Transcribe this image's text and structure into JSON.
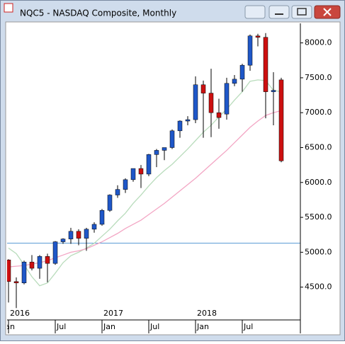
{
  "window_title": "NQC5 - NASDAQ Composite, Monthly",
  "chart_data": {
    "type": "candlestick",
    "categories": [
      "Jan",
      null,
      null,
      null,
      null,
      null,
      "Jul",
      null,
      null,
      null,
      null,
      null,
      "Jan",
      null,
      null,
      null,
      null,
      null,
      "Jul",
      null,
      null,
      null,
      null,
      null,
      "Jan",
      null,
      null,
      null,
      null,
      null,
      "Jul",
      null,
      null,
      null,
      null,
      null
    ],
    "years": [
      "2016",
      null,
      null,
      null,
      null,
      null,
      null,
      null,
      null,
      null,
      null,
      null,
      "2017",
      null,
      null,
      null,
      null,
      null,
      null,
      null,
      null,
      null,
      null,
      null,
      "2018",
      null,
      null,
      null,
      null,
      null,
      null,
      null,
      null,
      null,
      null,
      null
    ],
    "open": [
      4890,
      4580,
      4560,
      4860,
      4770,
      4940,
      4840,
      5150,
      5190,
      5300,
      5200,
      5330,
      5400,
      5600,
      5820,
      5900,
      6040,
      6200,
      6120,
      6400,
      6460,
      6500,
      6740,
      6880,
      6900,
      7400,
      7280,
      7000,
      6980,
      7420,
      7480,
      7680,
      8100,
      8080,
      7300,
      7470
    ],
    "high": [
      4900,
      4640,
      4880,
      4960,
      4960,
      4980,
      5160,
      5200,
      5350,
      5330,
      5350,
      5430,
      5620,
      5830,
      5960,
      6060,
      6200,
      6250,
      6410,
      6480,
      6500,
      6760,
      6890,
      6950,
      7520,
      7460,
      7630,
      7200,
      7500,
      7540,
      7700,
      8120,
      8130,
      8140,
      7580,
      7500
    ],
    "low": [
      4280,
      4200,
      4540,
      4740,
      4620,
      4570,
      4820,
      5120,
      5120,
      5100,
      5020,
      5280,
      5380,
      5580,
      5780,
      5850,
      6010,
      5920,
      6090,
      6220,
      6320,
      6480,
      6640,
      6820,
      6850,
      6640,
      6650,
      6770,
      6900,
      7380,
      7300,
      7600,
      7950,
      6920,
      6820,
      6290
    ],
    "close": [
      4580,
      4560,
      4860,
      4770,
      4940,
      4840,
      5150,
      5190,
      5300,
      5200,
      5330,
      5400,
      5600,
      5820,
      5900,
      6040,
      6200,
      6120,
      6400,
      6460,
      6500,
      6740,
      6880,
      6900,
      7400,
      7280,
      7000,
      6930,
      7420,
      7480,
      7680,
      8100,
      8080,
      7300,
      7320,
      6310
    ],
    "up_color": "#1f57c8",
    "down_color": "#cc1010",
    "series": [
      {
        "color": "#b9dcbc",
        "values": [
          5060,
          4980,
          4820,
          4650,
          4520,
          4560,
          4700,
          4850,
          4950,
          5000,
          5060,
          5130,
          5230,
          5330,
          5450,
          5560,
          5700,
          5820,
          5950,
          6070,
          6170,
          6260,
          6370,
          6480,
          6600,
          6720,
          6820,
          6940,
          7050,
          7180,
          7300,
          7450,
          7470,
          7460,
          7320,
          7300
        ]
      },
      {
        "color": "#f3a6c4",
        "values": [
          4790,
          4800,
          4810,
          4830,
          4850,
          4880,
          4920,
          4960,
          5000,
          5020,
          5050,
          5100,
          5150,
          5210,
          5270,
          5340,
          5400,
          5460,
          5540,
          5620,
          5700,
          5790,
          5880,
          5970,
          6060,
          6160,
          6260,
          6360,
          6460,
          6570,
          6680,
          6790,
          6880,
          6960,
          7000,
          7030
        ]
      }
    ],
    "reference_line": 5130,
    "reference_color": "#5b9bd5",
    "ylim": [
      4030,
      8280
    ],
    "yticks": [
      {
        "value": 4500,
        "label": "4500.0"
      },
      {
        "value": 5000,
        "label": "5000.0"
      },
      {
        "value": 5500,
        "label": "5500.0"
      },
      {
        "value": 6000,
        "label": "6000.0"
      },
      {
        "value": 6500,
        "label": "6500.0"
      },
      {
        "value": 7000,
        "label": "7000.0"
      },
      {
        "value": 7500,
        "label": "7500.0"
      },
      {
        "value": 8000,
        "label": "8000.0"
      }
    ]
  }
}
